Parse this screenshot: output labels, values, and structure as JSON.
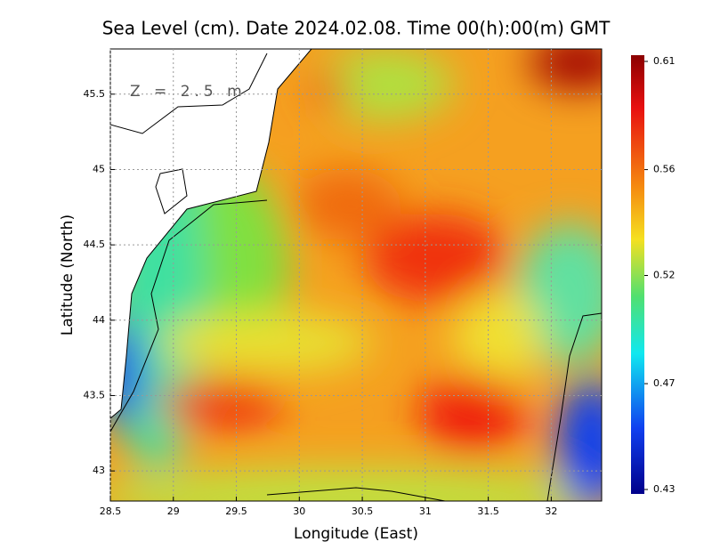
{
  "chart_data": {
    "type": "contour-map",
    "title": "Sea Level (cm). Date 2024.02.08. Time 00(h):00(m) GMT",
    "annotation": "Z = 2.5 m",
    "x_label": "Longitude (East)",
    "y_label": "Latitude (North)",
    "xlim": [
      28.5,
      32.4
    ],
    "ylim": [
      42.8,
      45.8
    ],
    "xticks": [
      28.5,
      29,
      29.5,
      30,
      30.5,
      31,
      31.5,
      32
    ],
    "yticks": [
      43,
      43.5,
      44,
      44.5,
      45,
      45.5
    ],
    "grid": true,
    "colorbar": {
      "lim": [
        0.43,
        0.61
      ],
      "ticks": [
        0.43,
        {
          "value": 0.4745,
          "label": "0.47"
        },
        0.52,
        {
          "value": 0.5645,
          "label": "0.56"
        },
        0.61
      ]
    }
  }
}
